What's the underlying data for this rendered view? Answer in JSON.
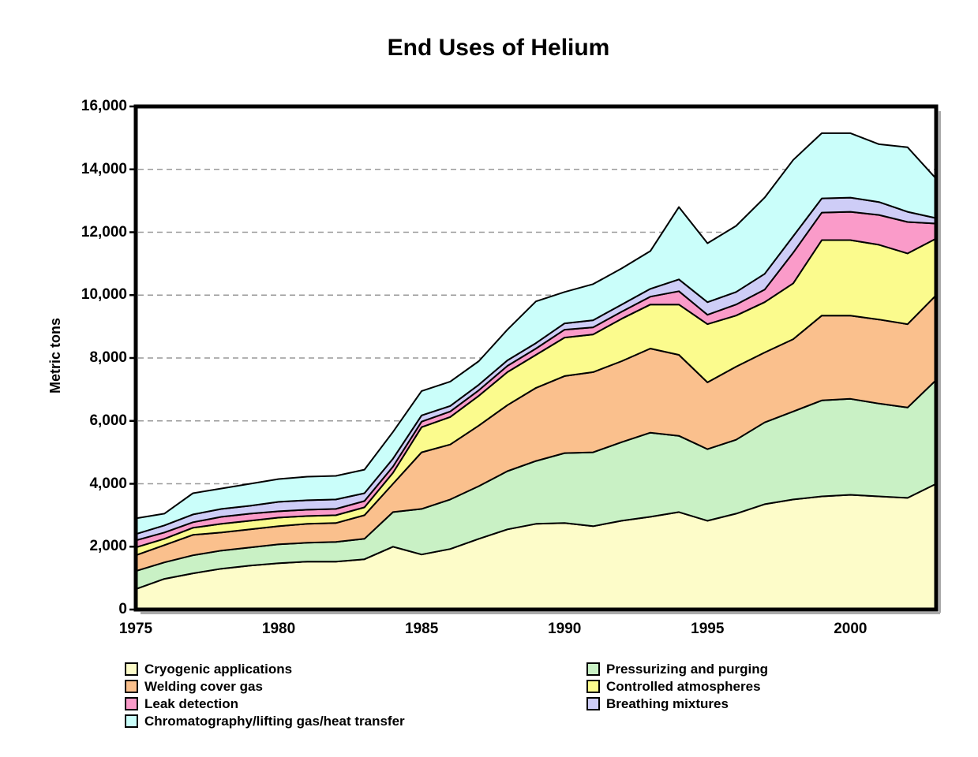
{
  "title": "End Uses of Helium",
  "chart_data": {
    "type": "area",
    "stacked": true,
    "title": "End Uses of Helium",
    "xlabel": "",
    "ylabel": "Metric tons",
    "ylim": [
      0,
      16000
    ],
    "y_ticks": [
      0,
      2000,
      4000,
      6000,
      8000,
      10000,
      12000,
      14000,
      16000
    ],
    "x_ticks": [
      1975,
      1980,
      1985,
      1990,
      1995,
      2000
    ],
    "grid": "horizontal dashed gridlines at each y tick",
    "legend_position": "bottom, two columns",
    "x": [
      1975,
      1976,
      1977,
      1978,
      1979,
      1980,
      1981,
      1982,
      1983,
      1984,
      1985,
      1986,
      1987,
      1988,
      1989,
      1990,
      1991,
      1992,
      1993,
      1994,
      1995,
      1996,
      1997,
      1998,
      1999,
      2000,
      2001,
      2002,
      2003
    ],
    "series": [
      {
        "name": "Cryogenic applications",
        "color": "#FDFCC9",
        "values": [
          650,
          975,
          1150,
          1300,
          1400,
          1475,
          1525,
          1525,
          1600,
          2000,
          1750,
          1925,
          2250,
          2550,
          2725,
          2750,
          2650,
          2825,
          2950,
          3100,
          2825,
          3050,
          3350,
          3500,
          3600,
          3650,
          3600,
          3550,
          4000
        ]
      },
      {
        "name": "Pressurizing and purging",
        "color": "#C9F1C5",
        "values": [
          575,
          525,
          575,
          575,
          575,
          600,
          600,
          625,
          650,
          1100,
          1450,
          1575,
          1675,
          1850,
          2000,
          2225,
          2350,
          2500,
          2675,
          2425,
          2275,
          2350,
          2600,
          2800,
          3050,
          3050,
          2950,
          2875,
          3300
        ]
      },
      {
        "name": "Welding cover gas",
        "color": "#FAC08D",
        "values": [
          500,
          550,
          650,
          575,
          575,
          575,
          600,
          600,
          750,
          900,
          1800,
          1750,
          1925,
          2100,
          2325,
          2450,
          2550,
          2575,
          2675,
          2575,
          2125,
          2325,
          2225,
          2300,
          2700,
          2650,
          2675,
          2650,
          2700
        ]
      },
      {
        "name": "Controlled atmospheres",
        "color": "#FBFB8D",
        "values": [
          250,
          200,
          225,
          275,
          275,
          275,
          250,
          250,
          250,
          350,
          800,
          875,
          950,
          1050,
          1050,
          1225,
          1200,
          1350,
          1400,
          1600,
          1850,
          1625,
          1600,
          1775,
          2400,
          2400,
          2375,
          2250,
          1800
        ]
      },
      {
        "name": "Leak detection",
        "color": "#FA9BC9",
        "values": [
          225,
          200,
          175,
          225,
          225,
          200,
          200,
          200,
          200,
          200,
          175,
          175,
          175,
          200,
          200,
          250,
          225,
          225,
          250,
          425,
          300,
          350,
          400,
          975,
          875,
          900,
          950,
          1000,
          475
        ]
      },
      {
        "name": "Breathing mixtures",
        "color": "#CECDF7",
        "values": [
          200,
          225,
          250,
          250,
          250,
          300,
          300,
          300,
          250,
          250,
          200,
          175,
          175,
          175,
          175,
          200,
          225,
          225,
          250,
          375,
          400,
          400,
          500,
          525,
          450,
          450,
          410,
          325,
          175
        ]
      },
      {
        "name": "Chromatography/lifting gas/heat transfer",
        "color": "#CAFEFA",
        "values": [
          500,
          375,
          675,
          650,
          700,
          725,
          750,
          750,
          750,
          850,
          775,
          775,
          750,
          975,
          1325,
          1000,
          1150,
          1150,
          1200,
          2300,
          1875,
          2100,
          2425,
          2425,
          2075,
          2050,
          1840,
          2050,
          1250
        ]
      }
    ],
    "legend_columns": [
      [
        0,
        2,
        4,
        6
      ],
      [
        1,
        3,
        5
      ]
    ]
  },
  "colors": {
    "axis": "#000000",
    "gridline": "#999999",
    "shadow": "#aaaaaa",
    "background": "#ffffff"
  }
}
